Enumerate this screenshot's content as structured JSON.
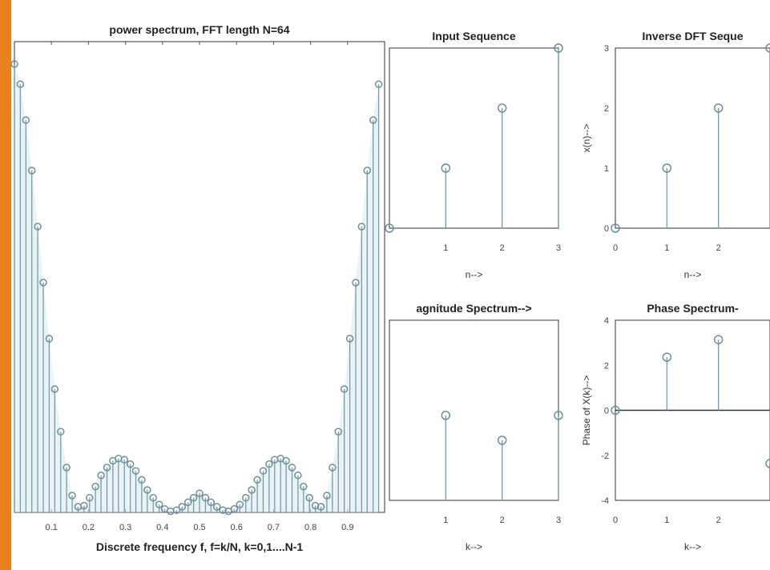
{
  "page": {
    "accent_color": "#e8821e"
  },
  "chart_data": [
    {
      "type": "stem",
      "title": "power spectrum, FFT length N=64",
      "xlabel": "Discrete frequency f, f=k/N, k=0,1....N-1",
      "ylabel": "",
      "xlim": [
        0,
        1
      ],
      "ylim": [
        0,
        4.2
      ],
      "xticks": [
        "0.1",
        "0.2",
        "0.3",
        "0.4",
        "0.5",
        "0.6",
        "0.7",
        "0.8",
        "0.9"
      ],
      "x": [
        0,
        0.016,
        0.031,
        0.047,
        0.063,
        0.078,
        0.094,
        0.109,
        0.125,
        0.141,
        0.156,
        0.172,
        0.188,
        0.203,
        0.219,
        0.234,
        0.25,
        0.266,
        0.281,
        0.297,
        0.313,
        0.328,
        0.344,
        0.359,
        0.375,
        0.391,
        0.406,
        0.422,
        0.438,
        0.453,
        0.469,
        0.484,
        0.5,
        0.516,
        0.531,
        0.547,
        0.563,
        0.578,
        0.594,
        0.609,
        0.625,
        0.641,
        0.656,
        0.672,
        0.688,
        0.703,
        0.719,
        0.734,
        0.75,
        0.766,
        0.781,
        0.797,
        0.813,
        0.828,
        0.844,
        0.859,
        0.875,
        0.891,
        0.906,
        0.922,
        0.938,
        0.953,
        0.969,
        0.984
      ],
      "values": [
        4.0,
        3.82,
        3.5,
        3.05,
        2.55,
        2.05,
        1.55,
        1.1,
        0.72,
        0.4,
        0.15,
        0.05,
        0.06,
        0.13,
        0.23,
        0.33,
        0.4,
        0.46,
        0.48,
        0.47,
        0.43,
        0.37,
        0.29,
        0.2,
        0.13,
        0.07,
        0.03,
        0.01,
        0.02,
        0.05,
        0.09,
        0.13,
        0.17,
        0.13,
        0.09,
        0.05,
        0.02,
        0.01,
        0.03,
        0.07,
        0.13,
        0.2,
        0.29,
        0.37,
        0.43,
        0.47,
        0.48,
        0.46,
        0.4,
        0.33,
        0.23,
        0.13,
        0.06,
        0.05,
        0.15,
        0.4,
        0.72,
        1.1,
        1.55,
        2.05,
        2.55,
        3.05,
        3.5,
        3.82
      ]
    },
    {
      "type": "stem",
      "title": "Input Sequence",
      "xlabel": "n-->",
      "xlim": [
        0,
        3
      ],
      "ylim": [
        0,
        3
      ],
      "xticks": [
        "1",
        "2",
        "3"
      ],
      "yticks": [],
      "x": [
        0,
        1,
        2,
        3
      ],
      "values": [
        0,
        1,
        2,
        3
      ]
    },
    {
      "type": "stem",
      "title": "Inverse DFT Seque",
      "xlabel": "n-->",
      "ylabel": "x(n)-->",
      "xlim": [
        0,
        3
      ],
      "ylim": [
        0,
        3
      ],
      "xticks": [
        "0",
        "1",
        "2"
      ],
      "yticks": [
        "0",
        "1",
        "2",
        "3"
      ],
      "x": [
        0,
        1,
        2,
        3
      ],
      "values": [
        0,
        1,
        2,
        3
      ]
    },
    {
      "type": "stem",
      "title": "agnitude Spectrum-->",
      "xlabel": "k-->",
      "xlim": [
        0,
        3
      ],
      "ylim": [
        0,
        6
      ],
      "xticks": [
        "1",
        "2",
        "3"
      ],
      "yticks": [],
      "x": [
        1,
        2,
        3
      ],
      "values": [
        2.83,
        2.0,
        2.83
      ]
    },
    {
      "type": "stem",
      "title": "Phase Spectrum-",
      "xlabel": "k-->",
      "ylabel": "Phase of X(k)-->",
      "xlim": [
        0,
        3
      ],
      "ylim": [
        -4,
        4
      ],
      "xticks": [
        "0",
        "1",
        "2"
      ],
      "yticks": [
        "-4",
        "-2",
        "0",
        "2",
        "4"
      ],
      "x": [
        0,
        1,
        2,
        3
      ],
      "values": [
        0,
        2.36,
        3.14,
        -2.36
      ]
    }
  ]
}
